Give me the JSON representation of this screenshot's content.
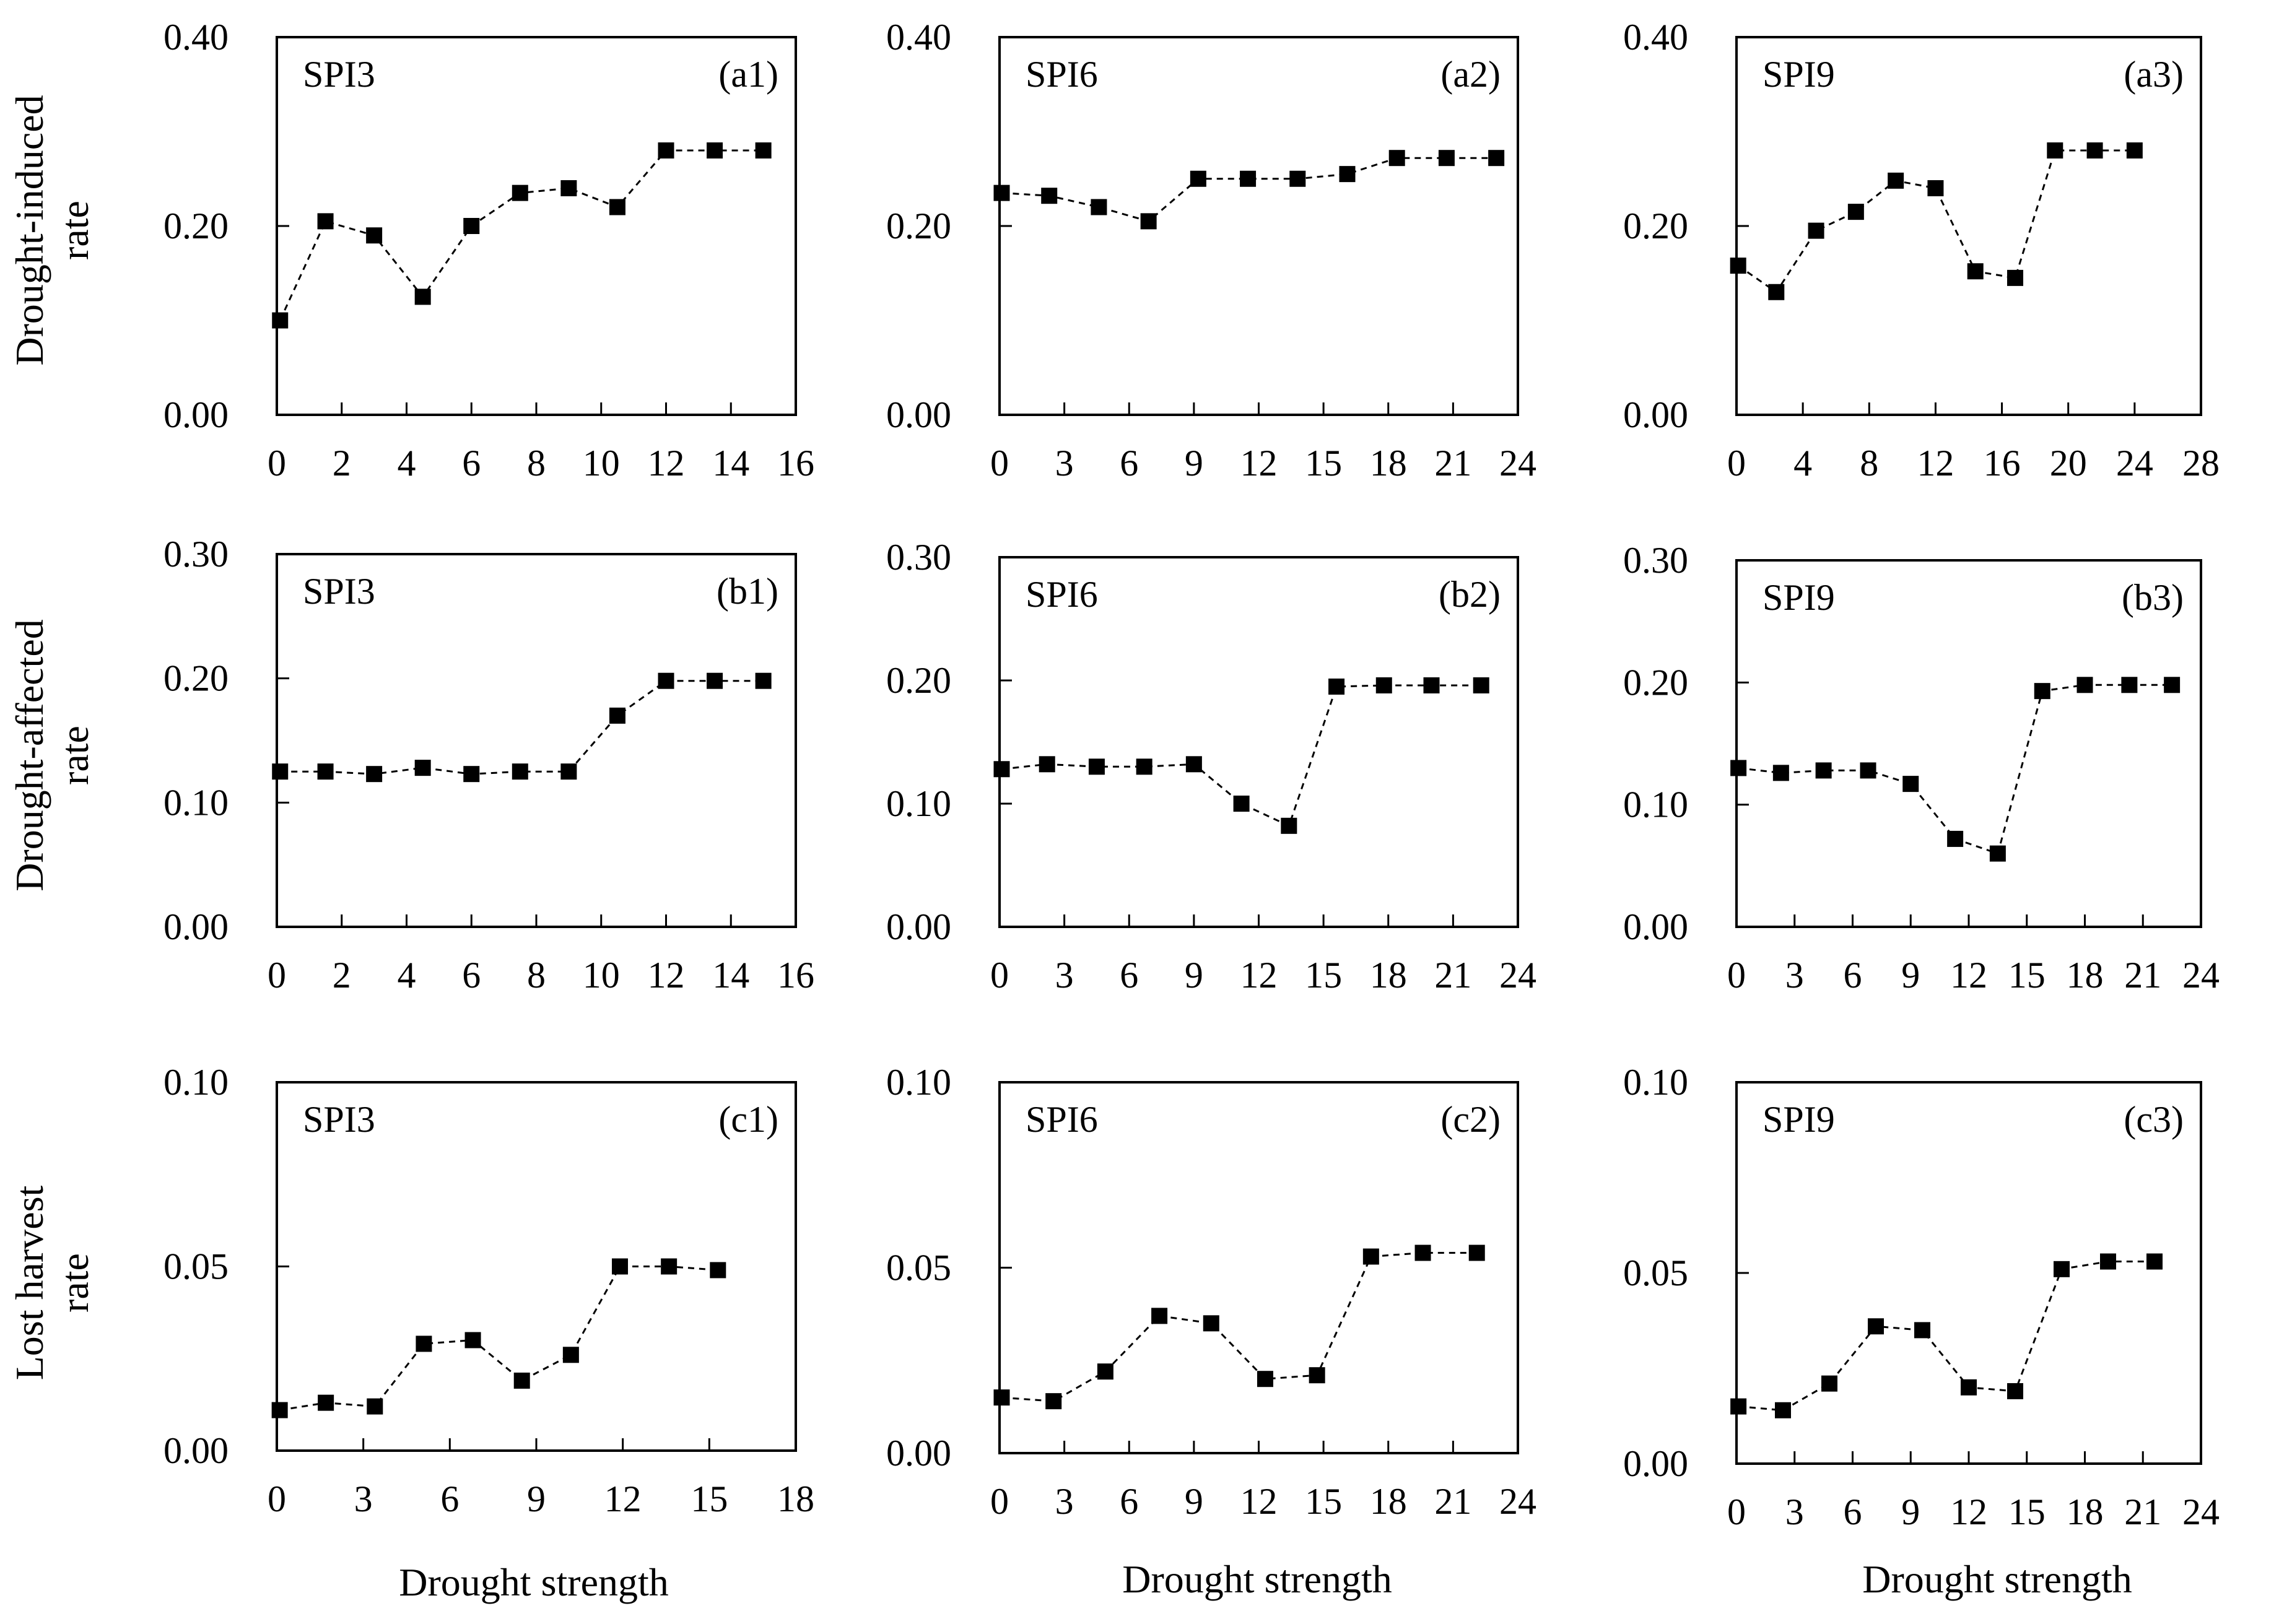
{
  "figure": {
    "x_axis_label": "Drought strength",
    "row_labels": [
      [
        "Drought-induced",
        "rate"
      ],
      [
        "Drought-affected",
        "rate"
      ],
      [
        "Lost harvest",
        "rate"
      ]
    ]
  },
  "chart_data": [
    {
      "type": "line",
      "index": "SPI3",
      "panel": "(a1)",
      "ylim": [
        0,
        0.4
      ],
      "yticks": [
        "0.00",
        "0.20",
        "0.40"
      ],
      "xlim": [
        0,
        16
      ],
      "xticks": [
        0,
        2,
        4,
        6,
        8,
        10,
        12,
        14,
        16
      ],
      "x": [
        0.1,
        1.5,
        3.0,
        4.5,
        6.0,
        7.5,
        9.0,
        10.5,
        12.0,
        13.5,
        15.0
      ],
      "y": [
        0.1,
        0.205,
        0.19,
        0.125,
        0.2,
        0.235,
        0.24,
        0.22,
        0.28,
        0.28,
        0.28
      ]
    },
    {
      "type": "line",
      "index": "SPI6",
      "panel": "(a2)",
      "ylim": [
        0,
        0.4
      ],
      "yticks": [
        "0.00",
        "0.20",
        "0.40"
      ],
      "xlim": [
        0,
        24
      ],
      "xticks": [
        0,
        3,
        6,
        9,
        12,
        15,
        18,
        21,
        24
      ],
      "x": [
        0.1,
        2.3,
        4.6,
        6.9,
        9.2,
        11.5,
        13.8,
        16.1,
        18.4,
        20.7,
        23.0
      ],
      "y": [
        0.235,
        0.232,
        0.22,
        0.205,
        0.25,
        0.25,
        0.25,
        0.255,
        0.272,
        0.272,
        0.272
      ]
    },
    {
      "type": "line",
      "index": "SPI9",
      "panel": "(a3)",
      "ylim": [
        0,
        0.4
      ],
      "yticks": [
        "0.00",
        "0.20",
        "0.40"
      ],
      "xlim": [
        0,
        28
      ],
      "xticks": [
        0,
        4,
        8,
        12,
        16,
        20,
        24,
        28
      ],
      "x": [
        0.1,
        2.4,
        4.8,
        7.2,
        9.6,
        12.0,
        14.4,
        16.8,
        19.2,
        21.6,
        24.0
      ],
      "y": [
        0.158,
        0.13,
        0.195,
        0.215,
        0.248,
        0.24,
        0.152,
        0.145,
        0.28,
        0.28,
        0.28
      ]
    },
    {
      "type": "line",
      "index": "SPI3",
      "panel": "(b1)",
      "ylim": [
        0,
        0.3
      ],
      "yticks": [
        "0.00",
        "0.10",
        "0.20",
        "0.30"
      ],
      "xlim": [
        0,
        16
      ],
      "xticks": [
        0,
        2,
        4,
        6,
        8,
        10,
        12,
        14,
        16
      ],
      "x": [
        0.1,
        1.5,
        3.0,
        4.5,
        6.0,
        7.5,
        9.0,
        10.5,
        12.0,
        13.5,
        15.0
      ],
      "y": [
        0.125,
        0.125,
        0.123,
        0.128,
        0.123,
        0.125,
        0.125,
        0.17,
        0.198,
        0.198,
        0.198
      ]
    },
    {
      "type": "line",
      "index": "SPI6",
      "panel": "(b2)",
      "ylim": [
        0,
        0.3
      ],
      "yticks": [
        "0.00",
        "0.10",
        "0.20",
        "0.30"
      ],
      "xlim": [
        0,
        24
      ],
      "xticks": [
        0,
        3,
        6,
        9,
        12,
        15,
        18,
        21,
        24
      ],
      "x": [
        0.1,
        2.2,
        4.5,
        6.7,
        9.0,
        11.2,
        13.4,
        15.6,
        17.8,
        20.0,
        22.3
      ],
      "y": [
        0.128,
        0.132,
        0.13,
        0.13,
        0.132,
        0.1,
        0.082,
        0.195,
        0.196,
        0.196,
        0.196
      ]
    },
    {
      "type": "line",
      "index": "SPI9",
      "panel": "(b3)",
      "ylim": [
        0,
        0.3
      ],
      "yticks": [
        "0.00",
        "0.10",
        "0.20",
        "0.30"
      ],
      "xlim": [
        0,
        24
      ],
      "xticks": [
        0,
        3,
        6,
        9,
        12,
        15,
        18,
        21,
        24
      ],
      "x": [
        0.1,
        2.3,
        4.5,
        6.8,
        9.0,
        11.3,
        13.5,
        15.8,
        18.0,
        20.3,
        22.5
      ],
      "y": [
        0.13,
        0.126,
        0.128,
        0.128,
        0.117,
        0.072,
        0.06,
        0.193,
        0.198,
        0.198,
        0.198
      ]
    },
    {
      "type": "line",
      "index": "SPI3",
      "panel": "(c1)",
      "ylim": [
        0,
        0.1
      ],
      "yticks": [
        "0.00",
        "0.05",
        "0.10"
      ],
      "xlim": [
        0,
        18
      ],
      "xticks": [
        0,
        3,
        6,
        9,
        12,
        15,
        18
      ],
      "x": [
        0.1,
        1.7,
        3.4,
        5.1,
        6.8,
        8.5,
        10.2,
        11.9,
        13.6,
        15.3
      ],
      "y": [
        0.011,
        0.013,
        0.012,
        0.029,
        0.03,
        0.019,
        0.026,
        0.05,
        0.05,
        0.049
      ]
    },
    {
      "type": "line",
      "index": "SPI6",
      "panel": "(c2)",
      "ylim": [
        0,
        0.1
      ],
      "yticks": [
        "0.00",
        "0.05",
        "0.10"
      ],
      "xlim": [
        0,
        24
      ],
      "xticks": [
        0,
        3,
        6,
        9,
        12,
        15,
        18,
        21,
        24
      ],
      "x": [
        0.1,
        2.5,
        4.9,
        7.4,
        9.8,
        12.3,
        14.7,
        17.2,
        19.6,
        22.1
      ],
      "y": [
        0.015,
        0.014,
        0.022,
        0.037,
        0.035,
        0.02,
        0.021,
        0.053,
        0.054,
        0.054
      ]
    },
    {
      "type": "line",
      "index": "SPI9",
      "panel": "(c3)",
      "ylim": [
        0,
        0.1
      ],
      "yticks": [
        "0.00",
        "0.05",
        "0.10"
      ],
      "xlim": [
        0,
        24
      ],
      "xticks": [
        0,
        3,
        6,
        9,
        12,
        15,
        18,
        21,
        24
      ],
      "x": [
        0.1,
        2.4,
        4.8,
        7.2,
        9.6,
        12.0,
        14.4,
        16.8,
        19.2,
        21.6
      ],
      "y": [
        0.015,
        0.014,
        0.021,
        0.036,
        0.035,
        0.02,
        0.019,
        0.051,
        0.053,
        0.053
      ]
    }
  ]
}
